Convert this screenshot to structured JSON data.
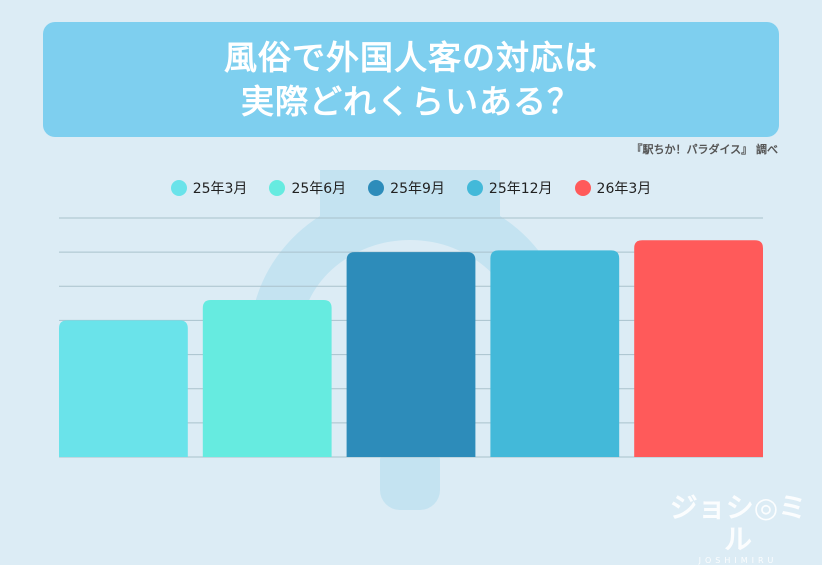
{
  "title": {
    "line1": "風俗で外国人客の対応は",
    "line2": "実際どれくらいある？"
  },
  "source": "『駅ちか！パラダイス』 調べ",
  "logo": {
    "main": "ジョシ◎ミル",
    "sub": "JOSHIMIRU"
  },
  "chart_data": {
    "type": "bar",
    "categories": [
      "25年3月",
      "25年6月",
      "25年9月",
      "25年12月",
      "26年3月"
    ],
    "values": [
      40,
      46,
      60,
      60.5,
      63.5
    ],
    "colors": [
      "#6ae3ea",
      "#66ebe0",
      "#2d8cba",
      "#43b9d9",
      "#ff5a5a"
    ],
    "ylim": [
      0,
      70
    ],
    "grid": true,
    "legend": "top-center",
    "title": "",
    "xlabel": "",
    "ylabel": ""
  }
}
